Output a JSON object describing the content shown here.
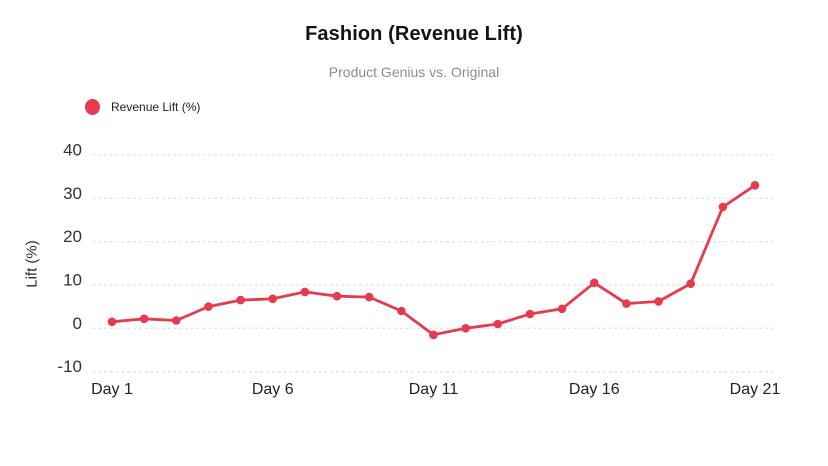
{
  "header": {
    "title": "Fashion (Revenue Lift)",
    "subtitle": "Product Genius vs. Original"
  },
  "legend": {
    "label": "Revenue Lift (%)",
    "marker_color": "#e63b4c"
  },
  "chart_data": {
    "type": "line",
    "title": "Fashion (Revenue Lift)",
    "subtitle": "Product Genius vs. Original",
    "xlabel": "",
    "ylabel": "Lift (%)",
    "ylim": [
      -10,
      40
    ],
    "yticks": [
      40,
      30,
      20,
      10,
      0,
      -10
    ],
    "xticks": [
      {
        "day": 1,
        "label": "Day 1"
      },
      {
        "day": 6,
        "label": "Day 6"
      },
      {
        "day": 11,
        "label": "Day 11"
      },
      {
        "day": 16,
        "label": "Day 16"
      },
      {
        "day": 21,
        "label": "Day 21"
      }
    ],
    "series": [
      {
        "name": "Revenue Lift (%)",
        "color": "#e63b4c",
        "marker": "circle",
        "x": [
          1,
          2,
          3,
          4,
          5,
          6,
          7,
          8,
          9,
          10,
          11,
          12,
          13,
          14,
          15,
          16,
          17,
          18,
          19,
          20,
          21
        ],
        "values": [
          1.5,
          2.2,
          1.8,
          5,
          6.5,
          6.8,
          8.4,
          7.4,
          7.2,
          4,
          -1.5,
          0,
          1,
          3.3,
          4.5,
          10.5,
          5.7,
          6.2,
          10.3,
          28,
          33
        ]
      }
    ],
    "grid": {
      "horizontal": true,
      "vertical": false,
      "style": "dotted",
      "color": "#e2e2e2"
    },
    "legend_position": "top-left"
  },
  "colors": {
    "background": "#ffffff",
    "title": "#141414",
    "subtitle": "#8d8d8d",
    "axis_text": "#333333",
    "accent": "#e63b4c"
  }
}
